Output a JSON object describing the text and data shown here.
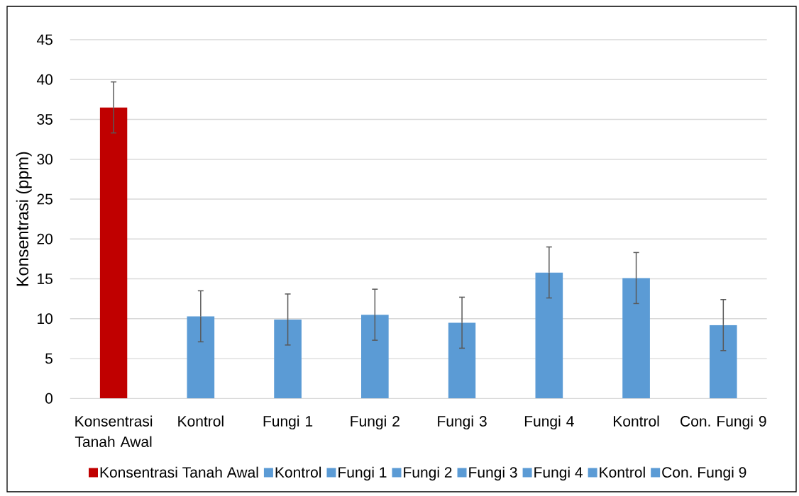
{
  "chart_data": {
    "type": "bar",
    "ylabel": "Konsentrasi (ppm)",
    "categories": [
      "Konsentrasi Tanah Awal",
      "Kontrol",
      "Fungi 1",
      "Fungi 2",
      "Fungi 3",
      "Fungi 4",
      "Kontrol",
      "Con. Fungi 9"
    ],
    "series": [
      {
        "name": "Konsentrasi Tanah Awal",
        "color": "#c00000",
        "values": [
          36.5,
          null,
          null,
          null,
          null,
          null,
          null,
          null
        ],
        "errors": [
          3.2,
          null,
          null,
          null,
          null,
          null,
          null,
          null
        ]
      },
      {
        "name": "Kontrol",
        "color": "#5b9bd5",
        "values": [
          null,
          10.3,
          null,
          null,
          null,
          null,
          null,
          null
        ],
        "errors": [
          null,
          3.2,
          null,
          null,
          null,
          null,
          null,
          null
        ]
      },
      {
        "name": "Fungi 1",
        "color": "#5b9bd5",
        "values": [
          null,
          null,
          9.9,
          null,
          null,
          null,
          null,
          null
        ],
        "errors": [
          null,
          null,
          3.2,
          null,
          null,
          null,
          null,
          null
        ]
      },
      {
        "name": "Fungi 2",
        "color": "#5b9bd5",
        "values": [
          null,
          null,
          null,
          10.5,
          null,
          null,
          null,
          null
        ],
        "errors": [
          null,
          null,
          null,
          3.2,
          null,
          null,
          null,
          null
        ]
      },
      {
        "name": "Fungi 3",
        "color": "#5b9bd5",
        "values": [
          null,
          null,
          null,
          null,
          9.5,
          null,
          null,
          null
        ],
        "errors": [
          null,
          null,
          null,
          null,
          3.2,
          null,
          null,
          null
        ]
      },
      {
        "name": "Fungi 4",
        "color": "#5b9bd5",
        "values": [
          null,
          null,
          null,
          null,
          null,
          15.8,
          null,
          null
        ],
        "errors": [
          null,
          null,
          null,
          null,
          null,
          3.2,
          null,
          null
        ]
      },
      {
        "name": "Kontrol",
        "color": "#5b9bd5",
        "values": [
          null,
          null,
          null,
          null,
          null,
          null,
          15.1,
          null
        ],
        "errors": [
          null,
          null,
          null,
          null,
          null,
          null,
          3.2,
          null
        ]
      },
      {
        "name": "Con. Fungi 9",
        "color": "#5b9bd5",
        "values": [
          null,
          null,
          null,
          null,
          null,
          null,
          null,
          9.2
        ],
        "errors": [
          null,
          null,
          null,
          null,
          null,
          null,
          null,
          3.2
        ]
      }
    ],
    "ylim": [
      0,
      45
    ],
    "yticks": [
      0,
      5,
      10,
      15,
      20,
      25,
      30,
      35,
      40,
      45
    ],
    "grid": "y",
    "legend": "bottom"
  }
}
